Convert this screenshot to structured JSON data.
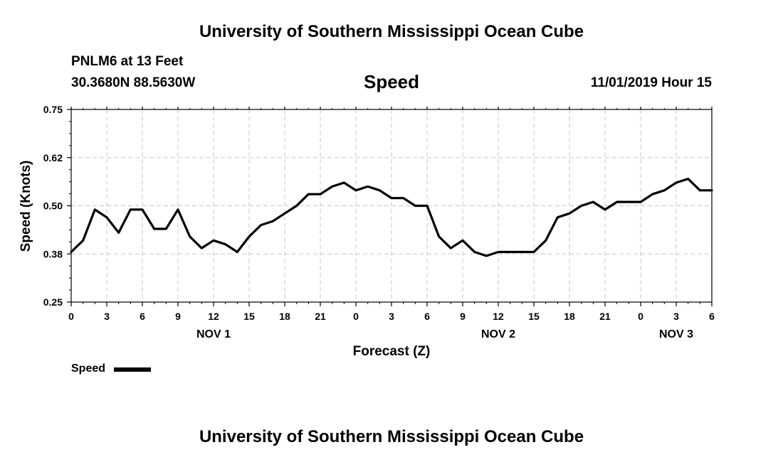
{
  "header": {
    "title": "University of Southern Mississippi Ocean Cube",
    "station": "PNLM6 at 13 Feet",
    "coords": "30.3680N 88.5630W",
    "datetime": "11/01/2019 Hour 15"
  },
  "footer": {
    "title": "University of Southern Mississippi Ocean Cube"
  },
  "legend": {
    "label": "Speed",
    "color": "#000000"
  },
  "chart_data": {
    "type": "line",
    "title": "Speed",
    "xlabel": "Forecast (Z)",
    "ylabel": "Speed (Knots)",
    "ylim": [
      0.25,
      0.75
    ],
    "yticks": [
      "0.25",
      "0.38",
      "0.50",
      "0.62",
      "0.75"
    ],
    "xlim": [
      0,
      54
    ],
    "xticks": [
      "0",
      "3",
      "6",
      "9",
      "12",
      "15",
      "18",
      "21",
      "0",
      "3",
      "6",
      "9",
      "12",
      "15",
      "18",
      "21",
      "0",
      "3",
      "6"
    ],
    "day_labels": [
      {
        "label": "NOV 1",
        "hour": 12
      },
      {
        "label": "NOV 2",
        "hour": 36
      },
      {
        "label": "NOV 3",
        "hour": 51
      }
    ],
    "grid": true,
    "legend_position": "bottom-left",
    "series": [
      {
        "name": "Speed",
        "color": "#000000",
        "x": [
          0,
          1,
          2,
          3,
          4,
          5,
          6,
          7,
          8,
          9,
          10,
          11,
          12,
          13,
          14,
          15,
          16,
          17,
          18,
          19,
          20,
          21,
          22,
          23,
          24,
          25,
          26,
          27,
          28,
          29,
          30,
          31,
          32,
          33,
          34,
          35,
          36,
          37,
          38,
          39,
          40,
          41,
          42,
          43,
          44,
          45,
          46,
          47,
          48,
          49,
          50,
          51,
          52,
          53,
          54
        ],
        "values": [
          0.38,
          0.41,
          0.49,
          0.47,
          0.43,
          0.49,
          0.49,
          0.44,
          0.44,
          0.49,
          0.42,
          0.39,
          0.41,
          0.4,
          0.38,
          0.42,
          0.45,
          0.46,
          0.48,
          0.5,
          0.53,
          0.53,
          0.55,
          0.56,
          0.54,
          0.55,
          0.54,
          0.52,
          0.52,
          0.5,
          0.5,
          0.42,
          0.39,
          0.41,
          0.38,
          0.37,
          0.38,
          0.38,
          0.38,
          0.38,
          0.41,
          0.47,
          0.48,
          0.5,
          0.51,
          0.49,
          0.51,
          0.51,
          0.51,
          0.53,
          0.54,
          0.56,
          0.57,
          0.54,
          0.54
        ]
      }
    ]
  }
}
